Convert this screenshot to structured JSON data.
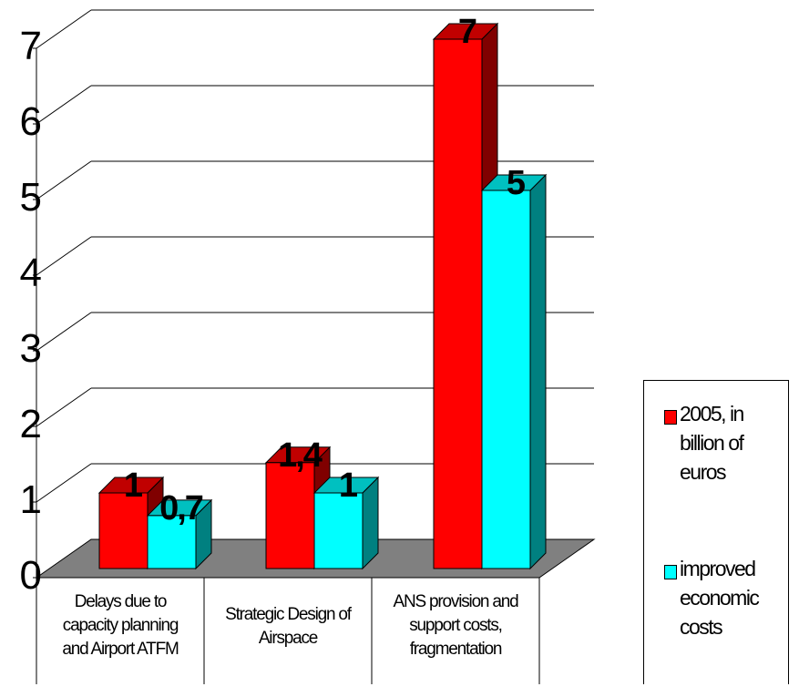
{
  "chart_data": {
    "type": "bar",
    "title": "",
    "xlabel": "",
    "ylabel": "",
    "ylim": [
      0,
      7
    ],
    "yticks": [
      "0",
      "1",
      "2",
      "3",
      "4",
      "5",
      "6",
      "7"
    ],
    "grid": true,
    "style": "3d-clustered",
    "legend_position": "right",
    "categories": [
      "Delays due to capacity planning and Airport ATFM",
      "Strategic Design of Airspace",
      "ANS provision and support costs, fragmentation"
    ],
    "category_lines": [
      [
        "Delays due to",
        "capacity planning",
        "and Airport ATFM"
      ],
      [
        "Strategic Design of",
        "Airspace"
      ],
      [
        "ANS provision and",
        "support costs,",
        "fragmentation"
      ]
    ],
    "series": [
      {
        "name": "2005, in billion of euros",
        "values": [
          1,
          1.4,
          7
        ],
        "labels": [
          "1",
          "1,4",
          "7"
        ],
        "color": "#ff0000",
        "side_color": "#800000",
        "top_color": "#c00000"
      },
      {
        "name": "improved economic costs",
        "values": [
          0.7,
          1,
          5
        ],
        "labels": [
          "0,7",
          "1",
          "5"
        ],
        "color": "#00ffff",
        "side_color": "#008080",
        "top_color": "#00c0c0"
      }
    ],
    "legend_lines": [
      [
        "2005, in",
        "billion of",
        "euros"
      ],
      [
        "improved",
        "economic",
        "costs"
      ]
    ],
    "floor_color": "#808080"
  }
}
